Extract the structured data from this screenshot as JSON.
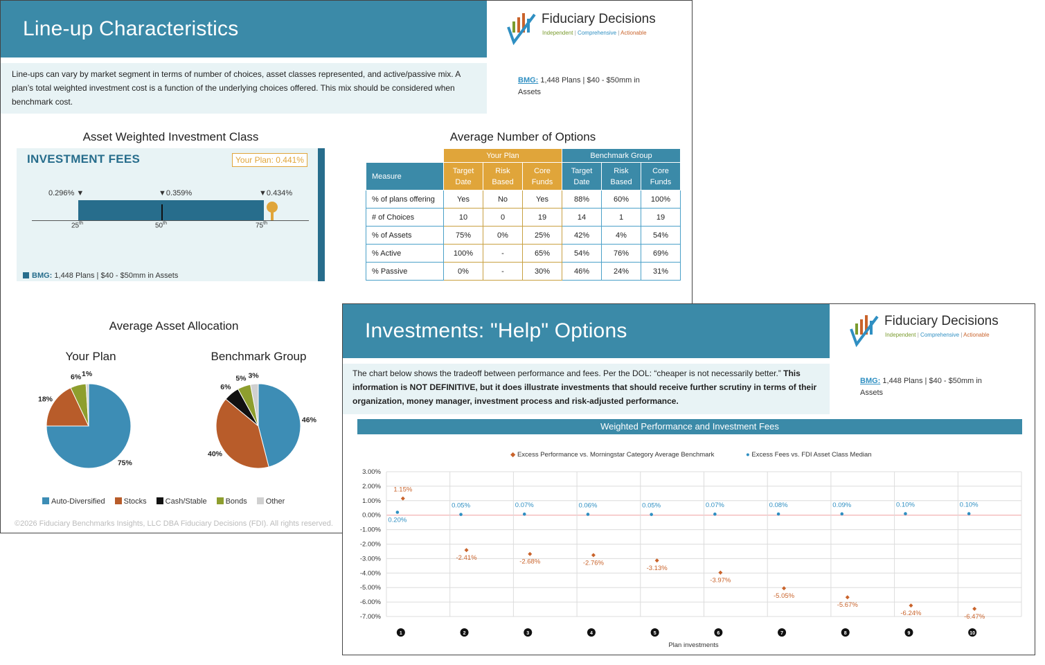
{
  "slide1": {
    "title": "Line-up Characteristics",
    "intro": "Line-ups can vary by market segment in terms of number of choices, asset classes represented, and active/passive mix. A plan’s total weighted investment cost is a function of the underlying choices offered. This mix should be considered when benchmark cost.",
    "logo": {
      "name": "Fiduciary Decisions",
      "tag1": "Independent",
      "sep": "|",
      "tag2": "Comprehensive",
      "tag3": "Actionable"
    },
    "bmg": {
      "label": "BMG:",
      "text": "1,448 Plans | $40 - $50mm in",
      "text2": "Assets"
    },
    "fee_section": {
      "title": "Asset Weighted Investment Class",
      "panel_title": "INVESTMENT FEES",
      "your_plan": "Your Plan: 0.441%",
      "p25_value": "0.296%",
      "p50_value": "0.359%",
      "p75_value": "0.434%",
      "p25": "25",
      "p50": "50",
      "p75": "75",
      "th": "th",
      "your_plan_pct": 0.441,
      "bmg_label": "BMG:",
      "bmg_text": "1,448 Plans | $40 - $50mm in Assets"
    },
    "options": {
      "title": "Average Number of Options",
      "group_your_plan": "Your Plan",
      "group_benchmark": "Benchmark Group",
      "measure_header": "Measure",
      "columns": [
        "Target Date",
        "Risk Based",
        "Core Funds",
        "Target Date",
        "Risk Based",
        "Core Funds"
      ],
      "rows": [
        {
          "measure": "% of plans offering",
          "values": [
            "Yes",
            "No",
            "Yes",
            "88%",
            "60%",
            "100%"
          ]
        },
        {
          "measure": "# of Choices",
          "values": [
            "10",
            "0",
            "19",
            "14",
            "1",
            "19"
          ]
        },
        {
          "measure": "% of Assets",
          "values": [
            "75%",
            "0%",
            "25%",
            "42%",
            "4%",
            "54%"
          ]
        },
        {
          "measure": "% Active",
          "values": [
            "100%",
            "-",
            "65%",
            "54%",
            "76%",
            "69%"
          ]
        },
        {
          "measure": "% Passive",
          "values": [
            "0%",
            "-",
            "30%",
            "46%",
            "24%",
            "31%"
          ]
        }
      ]
    },
    "allocation": {
      "title": "Average Asset Allocation",
      "your_plan_title": "Your Plan",
      "benchmark_title": "Benchmark Group",
      "legend": [
        "Auto-Diversified",
        "Stocks",
        "Cash/Stable",
        "Bonds",
        "Other"
      ],
      "colors": [
        "#3d8db5",
        "#b85c2a",
        "#111111",
        "#8e9e2e",
        "#d0d0d0"
      ]
    },
    "footer": "©2026 Fiduciary Benchmarks Insights, LLC DBA Fiduciary Decisions (FDI). All rights reserved."
  },
  "slide2": {
    "title": "Investments: \"Help\" Options",
    "intro_normal": "The chart below shows the tradeoff between performance and fees. Per the DOL: “cheaper is not necessarily better.” ",
    "intro_bold": "This information is NOT DEFINITIVE, but it does illustrate investments that should receive further scrutiny in terms of their organization, money manager, investment process and risk-adjusted performance.",
    "logo": {
      "name": "Fiduciary Decisions",
      "tag1": "Independent",
      "sep": "|",
      "tag2": "Comprehensive",
      "tag3": "Actionable"
    },
    "bmg": {
      "label": "BMG:",
      "text": "1,448 Plans | $40 - $50mm in",
      "text2": "Assets"
    },
    "chart_title": "Weighted Performance and Investment Fees"
  },
  "chart_data": [
    {
      "type": "pie",
      "title": "Your Plan",
      "categories": [
        "Auto-Diversified",
        "Stocks",
        "Cash/Stable",
        "Bonds",
        "Other"
      ],
      "values": [
        75,
        18,
        0,
        6,
        1
      ],
      "labels": [
        "75%",
        "18%",
        "",
        "6%",
        "1%"
      ]
    },
    {
      "type": "pie",
      "title": "Benchmark Group",
      "categories": [
        "Auto-Diversified",
        "Stocks",
        "Cash/Stable",
        "Bonds",
        "Other"
      ],
      "values": [
        46,
        40,
        6,
        5,
        3
      ],
      "labels": [
        "46%",
        "40%",
        "6%",
        "5%",
        "3%"
      ]
    },
    {
      "type": "scatter",
      "title": "Weighted Performance and Investment Fees",
      "xlabel": "Plan investments",
      "x": [
        "1",
        "2",
        "3",
        "4",
        "5",
        "6",
        "7",
        "8",
        "9",
        "10"
      ],
      "ylim": [
        -7.0,
        3.0
      ],
      "yticks": [
        "3.00%",
        "2.00%",
        "1.00%",
        "0.00%",
        "-1.00%",
        "-2.00%",
        "-3.00%",
        "-4.00%",
        "-5.00%",
        "-6.00%",
        "-7.00%"
      ],
      "grid": true,
      "legend_position": "top",
      "series": [
        {
          "name": "Excess Performance vs. Morningstar Category Average Benchmark",
          "color": "#c9632b",
          "values": [
            1.15,
            -2.41,
            -2.68,
            -2.76,
            -3.13,
            -3.97,
            -5.05,
            -5.67,
            -6.24,
            -6.47
          ],
          "labels": [
            "1.15%",
            "-2.41%",
            "-2.68%",
            "-2.76%",
            "-3.13%",
            "-3.97%",
            "-5.05%",
            "-5.67%",
            "-6.24%",
            "-6.47%"
          ]
        },
        {
          "name": "Excess Fees vs. FDI Asset Class Median",
          "color": "#2f8fc2",
          "values": [
            0.2,
            0.05,
            0.07,
            0.06,
            0.05,
            0.07,
            0.08,
            0.09,
            0.1,
            0.1
          ],
          "labels": [
            "0.20%",
            "0.05%",
            "0.07%",
            "0.06%",
            "0.05%",
            "0.07%",
            "0.08%",
            "0.09%",
            "0.10%",
            "0.10%"
          ]
        }
      ]
    }
  ]
}
